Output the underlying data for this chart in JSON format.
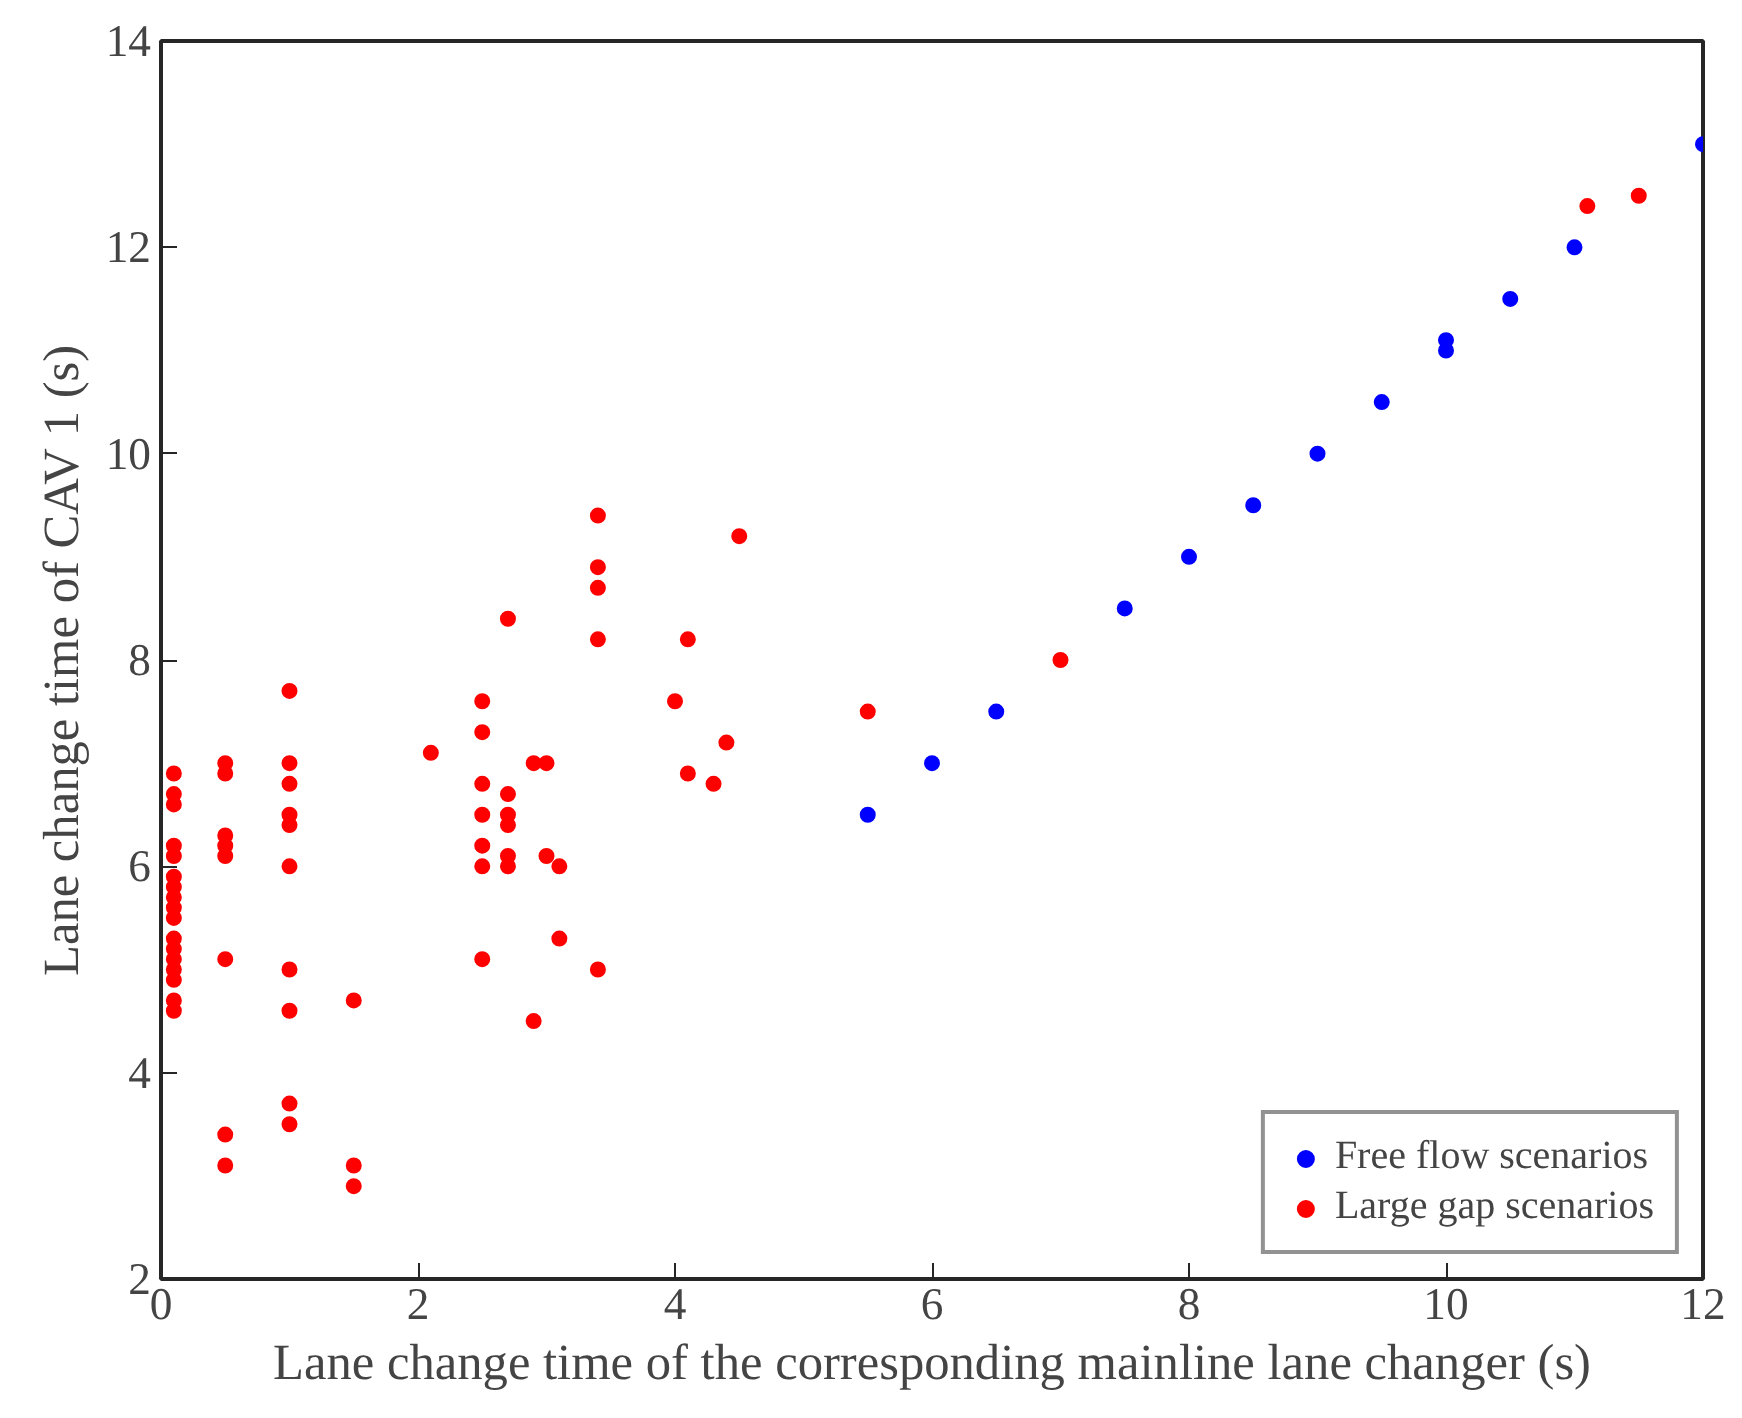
{
  "chart_data": {
    "type": "scatter",
    "xlabel": "Lane change time of the corresponding mainline lane changer (s)",
    "ylabel": "Lane change time of CAV 1 (s)",
    "xlim": [
      0,
      12
    ],
    "ylim": [
      2,
      14
    ],
    "xticks": [
      0,
      2,
      4,
      6,
      8,
      10,
      12
    ],
    "yticks": [
      2,
      4,
      6,
      8,
      10,
      12,
      14
    ],
    "grid": false,
    "legend": "bottom right",
    "marker": "circle",
    "series": [
      {
        "name": "Free flow scenarios",
        "color": "#0000ff",
        "x": [
          5.5,
          6,
          6.5,
          7.5,
          8,
          8.5,
          9,
          9.5,
          10,
          10,
          10.5,
          11,
          12
        ],
        "values": [
          6.5,
          7,
          7.5,
          8.5,
          9,
          9.5,
          10,
          10.5,
          11,
          11.1,
          11.5,
          12,
          13
        ]
      },
      {
        "name": "Large gap scenarios",
        "color": "#ff0000",
        "x": [
          0.1,
          0.1,
          0.1,
          0.1,
          0.1,
          0.1,
          0.1,
          0.1,
          0.1,
          0.1,
          0.1,
          0.1,
          0.1,
          0.1,
          0.1,
          0.1,
          0.1,
          0.5,
          0.5,
          0.5,
          0.5,
          0.5,
          0.5,
          0.5,
          0.5,
          1,
          1,
          1,
          1,
          1,
          1,
          1,
          1,
          1,
          1,
          1.5,
          1.5,
          1.5,
          2.1,
          2.5,
          2.5,
          2.5,
          2.5,
          2.5,
          2.5,
          2.5,
          2.7,
          2.7,
          2.7,
          2.7,
          2.7,
          2.7,
          2.9,
          2.9,
          3.0,
          3.0,
          3.1,
          3.1,
          3.4,
          3.4,
          3.4,
          3.4,
          3.4,
          4.0,
          4.1,
          4.1,
          4.3,
          4.4,
          4.5,
          5.5,
          7,
          11.1,
          11.5
        ],
        "values": [
          6.9,
          6.7,
          6.6,
          6.2,
          6.1,
          5.9,
          5.8,
          5.7,
          5.6,
          5.5,
          5.3,
          5.2,
          5.1,
          5.0,
          4.9,
          4.7,
          4.6,
          7.0,
          6.9,
          6.3,
          6.2,
          6.1,
          5.1,
          3.4,
          3.1,
          7.7,
          7.0,
          6.8,
          6.5,
          6.4,
          6.0,
          5.0,
          4.6,
          3.7,
          3.5,
          4.7,
          3.1,
          2.9,
          7.1,
          7.6,
          7.3,
          6.8,
          6.5,
          6.2,
          6.0,
          5.1,
          8.4,
          6.7,
          6.5,
          6.4,
          6.1,
          6.0,
          7.0,
          4.5,
          7.0,
          6.1,
          6.0,
          5.3,
          9.4,
          8.9,
          8.7,
          8.2,
          5.0,
          7.6,
          8.2,
          6.9,
          6.8,
          7.2,
          9.2,
          7.5,
          8.0,
          12.4,
          12.5
        ]
      }
    ]
  }
}
